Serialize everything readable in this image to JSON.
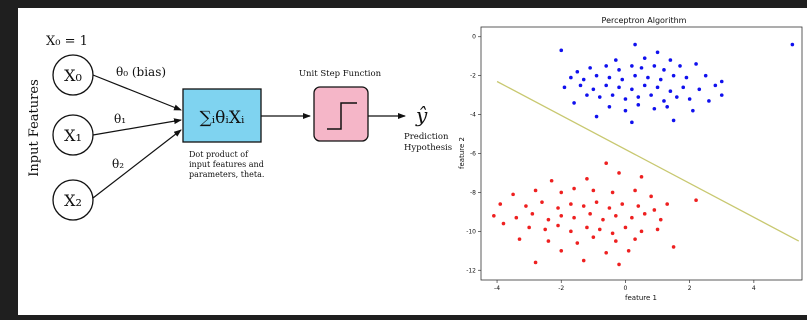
{
  "diagram": {
    "x0_label": "X₀ = 1",
    "input_features_label": "Input Features",
    "nodes": [
      "X₀",
      "X₁",
      "X₂"
    ],
    "weights": [
      "θ₀ (bias)",
      "θ₁",
      "θ₂"
    ],
    "sum_label": "∑ᵢθᵢXᵢ",
    "sum_caption": [
      "Dot product of",
      "input features and",
      "parameters, theta."
    ],
    "step_label": "Unit Step Function",
    "output_label": "ŷ",
    "output_caption": [
      "Prediction",
      "Hypothesis"
    ]
  },
  "chart_data": {
    "type": "scatter",
    "title": "Perceptron Algorithm",
    "xlabel": "feature 1",
    "ylabel": "feature 2",
    "xlim": [
      -4.5,
      5.5
    ],
    "ylim": [
      -12.5,
      0.5
    ],
    "xticks": [
      -4,
      -2,
      0,
      2,
      4
    ],
    "yticks": [
      0,
      -2,
      -4,
      -6,
      -8,
      -10,
      -12
    ],
    "colors": {
      "blue": "#1010ee",
      "red": "#ee2020",
      "line": "#c8c870"
    },
    "decision_line": [
      [
        -4.0,
        -2.3
      ],
      [
        5.4,
        -10.5
      ]
    ],
    "series": [
      {
        "name": "",
        "color": "#1010ee",
        "points": [
          [
            -2.0,
            -0.7
          ],
          [
            0.3,
            -0.4
          ],
          [
            1.0,
            -0.8
          ],
          [
            5.2,
            -0.4
          ],
          [
            -0.3,
            -1.2
          ],
          [
            0.6,
            -1.1
          ],
          [
            1.4,
            -1.2
          ],
          [
            -1.5,
            -1.8
          ],
          [
            -1.1,
            -1.6
          ],
          [
            -0.6,
            -1.5
          ],
          [
            -0.2,
            -1.7
          ],
          [
            0.2,
            -1.5
          ],
          [
            0.5,
            -1.6
          ],
          [
            0.9,
            -1.5
          ],
          [
            1.2,
            -1.7
          ],
          [
            1.7,
            -1.5
          ],
          [
            2.2,
            -1.4
          ],
          [
            -1.7,
            -2.1
          ],
          [
            -1.3,
            -2.2
          ],
          [
            -0.9,
            -2.0
          ],
          [
            -0.5,
            -2.1
          ],
          [
            -0.1,
            -2.2
          ],
          [
            0.3,
            -2.0
          ],
          [
            0.7,
            -2.1
          ],
          [
            1.1,
            -2.2
          ],
          [
            1.5,
            -2.0
          ],
          [
            1.9,
            -2.1
          ],
          [
            2.5,
            -2.0
          ],
          [
            3.0,
            -2.3
          ],
          [
            -1.9,
            -2.6
          ],
          [
            -1.4,
            -2.5
          ],
          [
            -1.0,
            -2.7
          ],
          [
            -0.6,
            -2.5
          ],
          [
            -0.2,
            -2.6
          ],
          [
            0.2,
            -2.7
          ],
          [
            0.6,
            -2.5
          ],
          [
            1.0,
            -2.6
          ],
          [
            1.4,
            -2.8
          ],
          [
            1.8,
            -2.6
          ],
          [
            2.3,
            -2.7
          ],
          [
            2.8,
            -2.5
          ],
          [
            -1.2,
            -3.0
          ],
          [
            -0.8,
            -3.1
          ],
          [
            -0.4,
            -3.0
          ],
          [
            0.0,
            -3.2
          ],
          [
            0.4,
            -3.1
          ],
          [
            0.8,
            -3.0
          ],
          [
            1.2,
            -3.3
          ],
          [
            1.6,
            -3.1
          ],
          [
            2.0,
            -3.2
          ],
          [
            2.6,
            -3.3
          ],
          [
            3.0,
            -3.0
          ],
          [
            -0.5,
            -3.6
          ],
          [
            0.0,
            -3.8
          ],
          [
            0.4,
            -3.5
          ],
          [
            0.9,
            -3.7
          ],
          [
            1.3,
            -3.6
          ],
          [
            2.1,
            -3.8
          ],
          [
            -0.9,
            -4.1
          ],
          [
            1.5,
            -4.3
          ],
          [
            0.2,
            -4.4
          ],
          [
            -1.6,
            -3.4
          ]
        ]
      },
      {
        "name": "",
        "color": "#ee2020",
        "points": [
          [
            -0.6,
            -6.5
          ],
          [
            -2.3,
            -7.4
          ],
          [
            -1.2,
            -7.3
          ],
          [
            -0.2,
            -7.0
          ],
          [
            0.5,
            -7.2
          ],
          [
            -3.5,
            -8.1
          ],
          [
            -2.8,
            -7.9
          ],
          [
            -2.0,
            -8.0
          ],
          [
            -1.6,
            -7.8
          ],
          [
            -1.0,
            -7.9
          ],
          [
            -0.4,
            -8.0
          ],
          [
            0.3,
            -7.9
          ],
          [
            0.8,
            -8.2
          ],
          [
            2.2,
            -8.4
          ],
          [
            -3.9,
            -8.6
          ],
          [
            -3.1,
            -8.7
          ],
          [
            -2.6,
            -8.5
          ],
          [
            -2.1,
            -8.8
          ],
          [
            -1.7,
            -8.6
          ],
          [
            -1.3,
            -8.7
          ],
          [
            -0.9,
            -8.5
          ],
          [
            -0.5,
            -8.8
          ],
          [
            -0.1,
            -8.6
          ],
          [
            0.4,
            -8.7
          ],
          [
            0.9,
            -8.9
          ],
          [
            1.3,
            -8.6
          ],
          [
            -4.1,
            -9.2
          ],
          [
            -3.4,
            -9.3
          ],
          [
            -2.9,
            -9.1
          ],
          [
            -2.4,
            -9.4
          ],
          [
            -2.0,
            -9.2
          ],
          [
            -1.6,
            -9.3
          ],
          [
            -1.1,
            -9.1
          ],
          [
            -0.7,
            -9.4
          ],
          [
            -0.3,
            -9.2
          ],
          [
            0.2,
            -9.3
          ],
          [
            0.6,
            -9.1
          ],
          [
            1.1,
            -9.4
          ],
          [
            -3.0,
            -9.8
          ],
          [
            -2.5,
            -9.9
          ],
          [
            -2.1,
            -9.7
          ],
          [
            -1.7,
            -10.0
          ],
          [
            -1.2,
            -9.8
          ],
          [
            -0.8,
            -9.9
          ],
          [
            -0.4,
            -10.1
          ],
          [
            0.0,
            -9.8
          ],
          [
            0.5,
            -10.0
          ],
          [
            1.0,
            -9.9
          ],
          [
            -3.3,
            -10.4
          ],
          [
            -2.4,
            -10.5
          ],
          [
            -1.5,
            -10.6
          ],
          [
            -1.0,
            -10.3
          ],
          [
            -0.3,
            -10.5
          ],
          [
            0.3,
            -10.4
          ],
          [
            -2.0,
            -11.0
          ],
          [
            -0.6,
            -11.1
          ],
          [
            0.1,
            -11.0
          ],
          [
            -1.3,
            -11.5
          ],
          [
            -0.2,
            -11.7
          ],
          [
            -2.8,
            -11.6
          ],
          [
            1.5,
            -10.8
          ],
          [
            -3.8,
            -9.6
          ]
        ]
      }
    ]
  }
}
